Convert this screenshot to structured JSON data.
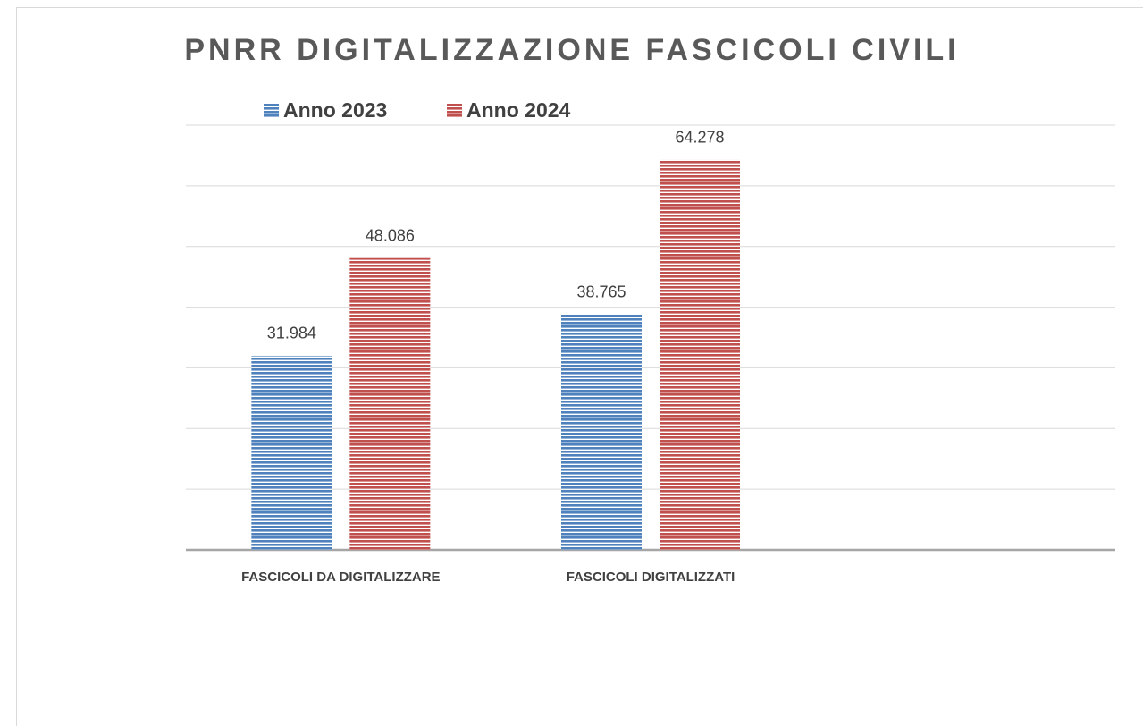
{
  "chart_data": {
    "type": "bar",
    "title": "PNRR DIGITALIZZAZIONE FASCICOLI CIVILI",
    "categories": [
      "FASCICOLI DA DIGITALIZZARE",
      "FASCICOLI DIGITALIZZATI",
      null
    ],
    "series": [
      {
        "name": "Anno 2023",
        "color": "#4f81bd",
        "values": [
          31984,
          38765,
          null
        ],
        "value_labels": [
          "31.984",
          "38.765",
          null
        ]
      },
      {
        "name": "Anno 2024",
        "color": "#c0504d",
        "values": [
          48086,
          64278,
          null
        ],
        "value_labels": [
          "48.086",
          "64.278",
          null
        ]
      }
    ],
    "ylim": [
      0,
      70000
    ],
    "yticks": [
      0,
      10000,
      20000,
      30000,
      40000,
      50000,
      60000,
      70000
    ],
    "grid": true,
    "legend": "top"
  }
}
